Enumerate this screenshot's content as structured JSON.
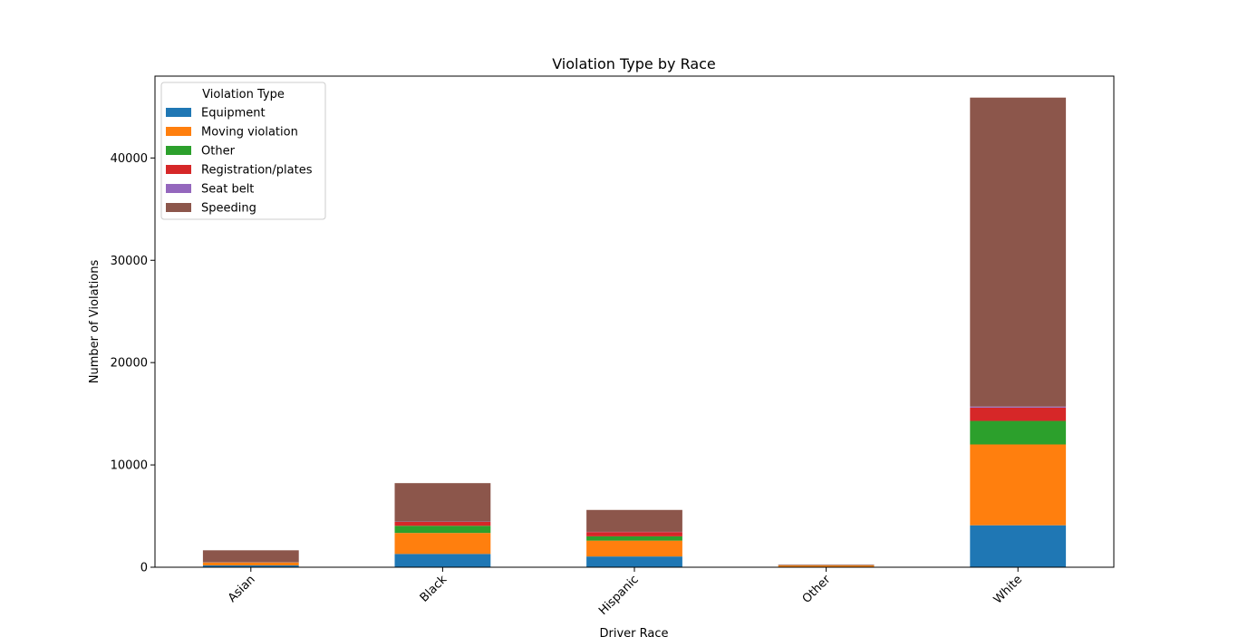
{
  "chart_data": {
    "type": "bar",
    "stacked": true,
    "title": "Violation Type by Race",
    "xlabel": "Driver Race",
    "ylabel": "Number of Violations",
    "categories": [
      "Asian",
      "Black",
      "Hispanic",
      "Other",
      "White"
    ],
    "ylim": [
      0,
      48000
    ],
    "yticks": [
      0,
      10000,
      20000,
      30000,
      40000
    ],
    "ytick_labels": [
      "0",
      "10000",
      "20000",
      "30000",
      "40000"
    ],
    "grid": false,
    "legend": {
      "title": "Violation Type",
      "placement": "top-left"
    },
    "series": [
      {
        "name": "Equipment",
        "color": "#1f77b4",
        "values": [
          180,
          1300,
          1050,
          40,
          4100
        ]
      },
      {
        "name": "Moving violation",
        "color": "#ff7f0e",
        "values": [
          270,
          2050,
          1550,
          130,
          7900
        ]
      },
      {
        "name": "Other",
        "color": "#2ca02c",
        "values": [
          20,
          700,
          420,
          10,
          2300
        ]
      },
      {
        "name": "Registration/plates",
        "color": "#d62728",
        "values": [
          30,
          380,
          420,
          10,
          1300
        ]
      },
      {
        "name": "Seat belt",
        "color": "#9467bd",
        "values": [
          5,
          30,
          20,
          0,
          100
        ]
      },
      {
        "name": "Speeding",
        "color": "#8c564b",
        "values": [
          1150,
          3760,
          2140,
          60,
          30200
        ]
      }
    ]
  }
}
